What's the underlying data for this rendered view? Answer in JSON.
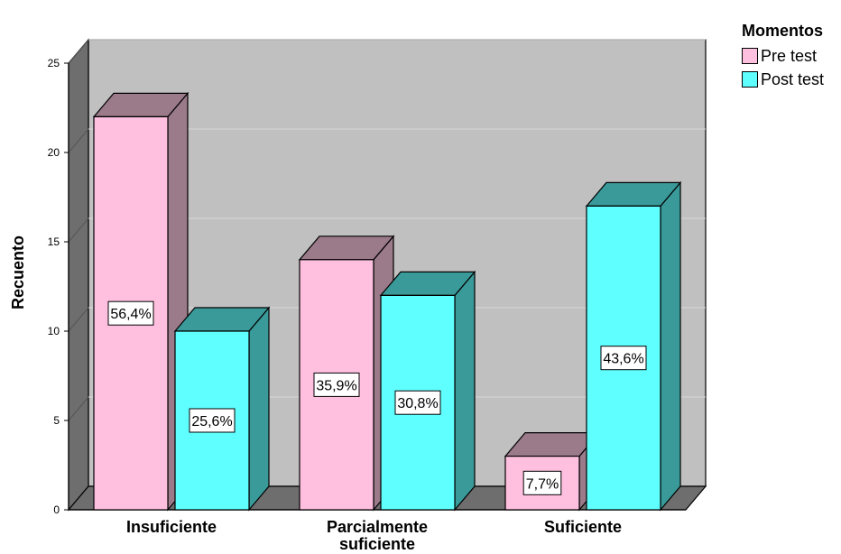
{
  "chart_data": {
    "type": "bar",
    "ylabel": "Recuento",
    "ylim": [
      0,
      25
    ],
    "yticks": [
      0,
      5,
      10,
      15,
      20,
      25
    ],
    "categories": [
      "Insuficiente",
      "Parcialmente suficiente",
      "Suficiente"
    ],
    "category_lines": [
      [
        "Insuficiente"
      ],
      [
        "Parcialmente",
        "suficiente"
      ],
      [
        "Suficiente"
      ]
    ],
    "series": [
      {
        "name": "Pre test",
        "values": [
          22,
          14,
          3
        ],
        "labels": [
          "56,4%",
          "35,9%",
          "7,7%"
        ],
        "color": "#ffc0e0",
        "side_color": "#9b7a8a"
      },
      {
        "name": "Post test",
        "values": [
          10,
          12,
          17
        ],
        "labels": [
          "25,6%",
          "30,8%",
          "43,6%"
        ],
        "color": "#60ffff",
        "side_color": "#3a9a9a"
      }
    ],
    "legend": {
      "title": "Momentos",
      "position": "top-right"
    },
    "grid": true,
    "style": "3d"
  }
}
